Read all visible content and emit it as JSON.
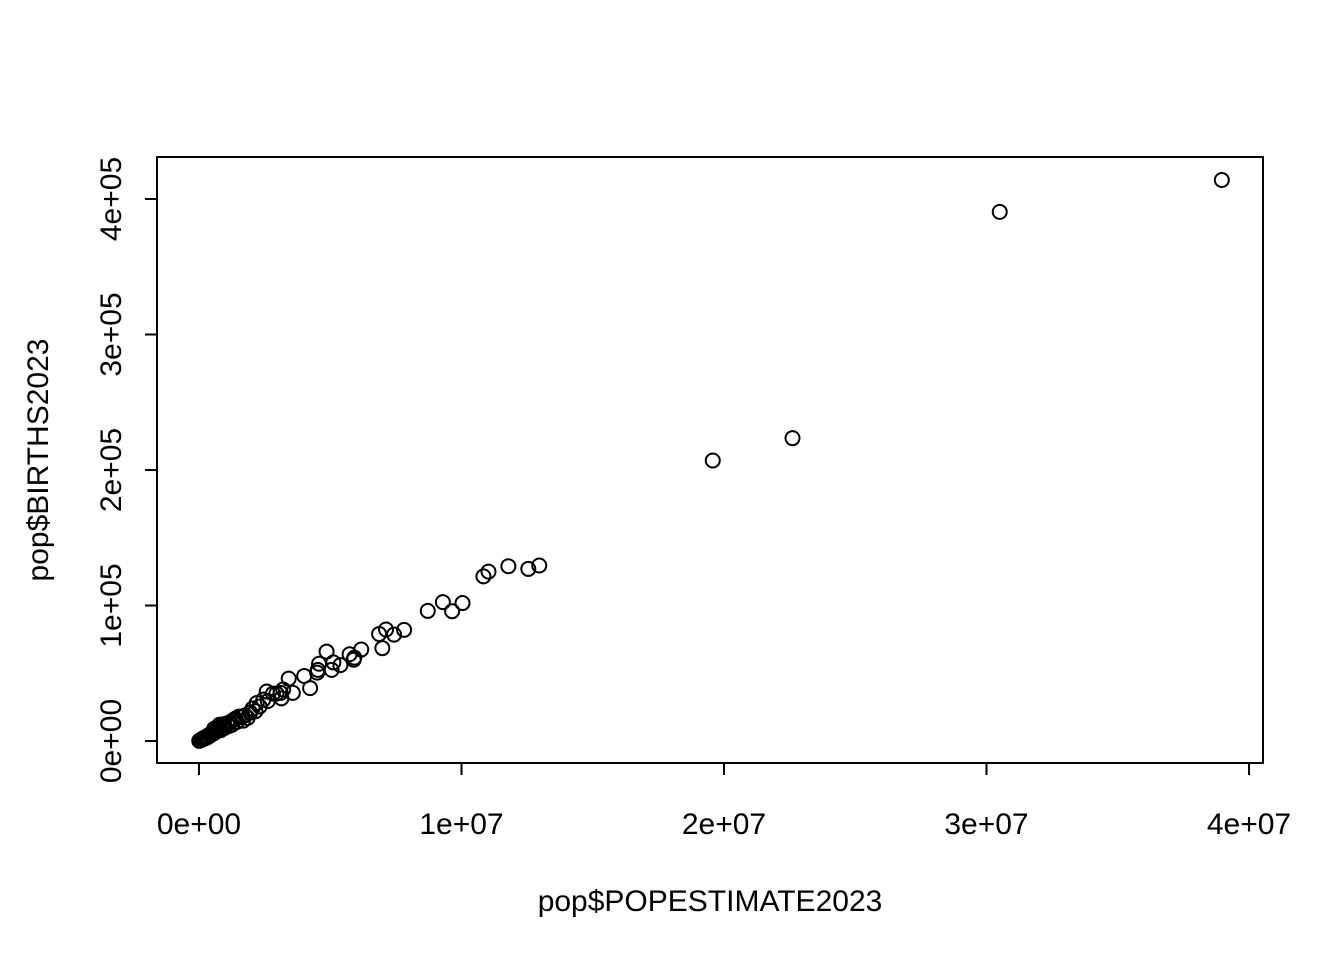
{
  "chart_data": {
    "type": "scatter",
    "title": "",
    "xlabel": "pop$POPESTIMATE2023",
    "ylabel": "pop$BIRTHS2023",
    "xlim": [
      0,
      40000000
    ],
    "ylim": [
      0,
      400000
    ],
    "x_ticks": [
      {
        "value": 0,
        "label": "0e+00"
      },
      {
        "value": 10000000,
        "label": "1e+07"
      },
      {
        "value": 20000000,
        "label": "2e+07"
      },
      {
        "value": 30000000,
        "label": "3e+07"
      },
      {
        "value": 40000000,
        "label": "4e+07"
      }
    ],
    "y_ticks": [
      {
        "value": 0,
        "label": "0e+00"
      },
      {
        "value": 100000,
        "label": "1e+05"
      },
      {
        "value": 200000,
        "label": "2e+05"
      },
      {
        "value": 300000,
        "label": "3e+05"
      },
      {
        "value": 400000,
        "label": "4e+05"
      }
    ],
    "grid": false,
    "points": [
      [
        38965000,
        414000
      ],
      [
        30504000,
        390500
      ],
      [
        22610000,
        223500
      ],
      [
        19572000,
        207000
      ],
      [
        12962000,
        129500
      ],
      [
        12545000,
        127000
      ],
      [
        11786000,
        129000
      ],
      [
        11029000,
        125000
      ],
      [
        10836000,
        121500
      ],
      [
        10038000,
        101800
      ],
      [
        9643000,
        95800
      ],
      [
        9290000,
        102500
      ],
      [
        8715000,
        96000
      ],
      [
        7813000,
        82000
      ],
      [
        7431000,
        78500
      ],
      [
        7126000,
        82300
      ],
      [
        6985000,
        68500
      ],
      [
        6862000,
        79000
      ],
      [
        6181000,
        67500
      ],
      [
        5918000,
        61500
      ],
      [
        5893000,
        60000
      ],
      [
        5738000,
        64000
      ],
      [
        5387000,
        56000
      ],
      [
        5118000,
        58000
      ],
      [
        5053000,
        52500
      ],
      [
        4860000,
        66000
      ],
      [
        4573000,
        57000
      ],
      [
        4526000,
        52500
      ],
      [
        4500000,
        50500
      ],
      [
        4233000,
        39000
      ],
      [
        4009000,
        48000
      ],
      [
        3574000,
        35500
      ],
      [
        3417000,
        46000
      ],
      [
        3206000,
        38000
      ],
      [
        3140000,
        31500
      ],
      [
        3112000,
        35500
      ],
      [
        2950000,
        35000
      ],
      [
        2818000,
        35000
      ],
      [
        2620000,
        29500
      ],
      [
        2580000,
        36500
      ],
      [
        2450000,
        30500
      ],
      [
        2310000,
        25500
      ],
      [
        2200000,
        28000
      ],
      [
        2150000,
        22000
      ],
      [
        2040000,
        24000
      ],
      [
        1950000,
        21000
      ],
      [
        1850000,
        17000
      ],
      [
        1760000,
        19000
      ],
      [
        1680000,
        15000
      ],
      [
        1610000,
        17500
      ],
      [
        1520000,
        18000
      ],
      [
        1440000,
        14000
      ],
      [
        1390000,
        16500
      ],
      [
        1310000,
        15500
      ],
      [
        1260000,
        12000
      ],
      [
        1190000,
        14000
      ],
      [
        1130000,
        11000
      ],
      [
        1070000,
        13000
      ],
      [
        1000000,
        10000
      ],
      [
        960000,
        12500
      ],
      [
        910000,
        9000
      ],
      [
        870000,
        11500
      ],
      [
        820000,
        8000
      ],
      [
        780000,
        12000
      ],
      [
        740000,
        9500
      ],
      [
        700000,
        7500
      ],
      [
        660000,
        8500
      ],
      [
        620000,
        6500
      ],
      [
        580000,
        9000
      ],
      [
        540000,
        5500
      ],
      [
        500000,
        6000
      ],
      [
        460000,
        4500
      ],
      [
        420000,
        5000
      ],
      [
        380000,
        3500
      ],
      [
        340000,
        4000
      ],
      [
        300000,
        2500
      ],
      [
        260000,
        3000
      ],
      [
        230000,
        2000
      ],
      [
        200000,
        2200
      ],
      [
        170000,
        1500
      ],
      [
        140000,
        1800
      ],
      [
        110000,
        1000
      ],
      [
        90000,
        1200
      ],
      [
        70000,
        700
      ],
      [
        50000,
        600
      ],
      [
        35000,
        400
      ],
      [
        20000,
        250
      ],
      [
        10000,
        100
      ]
    ]
  }
}
